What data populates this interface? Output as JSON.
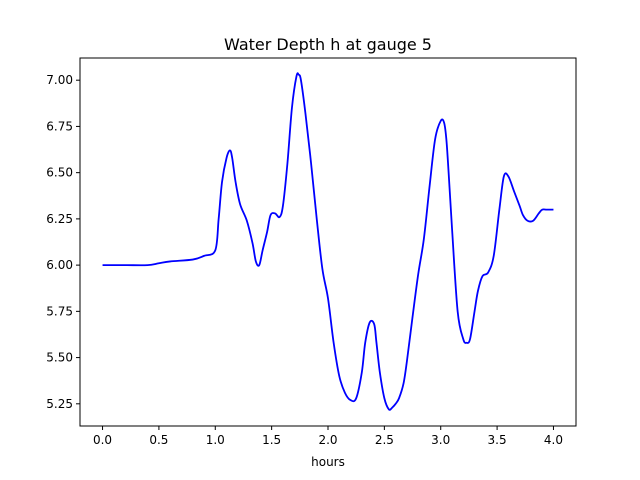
{
  "chart_data": {
    "type": "line",
    "title": "Water Depth h at gauge 5",
    "xlabel": "hours",
    "ylabel": "",
    "xlim": [
      -0.2,
      4.2
    ],
    "ylim": [
      5.13,
      7.12
    ],
    "x_ticks": [
      "0.0",
      "0.5",
      "1.0",
      "1.5",
      "2.0",
      "2.5",
      "3.0",
      "3.5",
      "4.0"
    ],
    "y_ticks": [
      "5.25",
      "5.50",
      "5.75",
      "6.00",
      "6.25",
      "6.50",
      "6.75",
      "7.00"
    ],
    "grid": false,
    "series": [
      {
        "color": "#0000ff",
        "x": [
          0.0,
          0.2,
          0.4,
          0.5,
          0.6,
          0.8,
          0.9,
          1.0,
          1.03,
          1.06,
          1.1,
          1.13,
          1.15,
          1.18,
          1.22,
          1.28,
          1.33,
          1.36,
          1.39,
          1.42,
          1.46,
          1.49,
          1.53,
          1.57,
          1.6,
          1.64,
          1.68,
          1.72,
          1.74,
          1.76,
          1.8,
          1.85,
          1.9,
          1.95,
          2.0,
          2.05,
          2.1,
          2.15,
          2.2,
          2.25,
          2.3,
          2.33,
          2.37,
          2.41,
          2.43,
          2.46,
          2.5,
          2.54,
          2.57,
          2.6,
          2.63,
          2.67,
          2.7,
          2.75,
          2.8,
          2.85,
          2.9,
          2.95,
          3.0,
          3.03,
          3.05,
          3.07,
          3.1,
          3.15,
          3.2,
          3.23,
          3.26,
          3.3,
          3.33,
          3.37,
          3.42,
          3.47,
          3.52,
          3.56,
          3.6,
          3.65,
          3.7,
          3.73,
          3.77,
          3.82,
          3.87,
          3.9,
          3.94,
          4.0
        ],
        "y": [
          6.0,
          6.0,
          6.0,
          6.01,
          6.02,
          6.03,
          6.05,
          6.08,
          6.25,
          6.45,
          6.58,
          6.62,
          6.58,
          6.45,
          6.33,
          6.24,
          6.12,
          6.02,
          6.0,
          6.08,
          6.18,
          6.27,
          6.28,
          6.26,
          6.32,
          6.55,
          6.85,
          7.02,
          7.03,
          7.0,
          6.82,
          6.55,
          6.25,
          5.98,
          5.82,
          5.58,
          5.4,
          5.31,
          5.27,
          5.28,
          5.42,
          5.58,
          5.69,
          5.68,
          5.58,
          5.42,
          5.28,
          5.22,
          5.23,
          5.25,
          5.28,
          5.36,
          5.48,
          5.72,
          5.95,
          6.14,
          6.42,
          6.68,
          6.78,
          6.77,
          6.68,
          6.5,
          6.2,
          5.75,
          5.6,
          5.58,
          5.6,
          5.75,
          5.86,
          5.94,
          5.96,
          6.05,
          6.3,
          6.48,
          6.48,
          6.4,
          6.32,
          6.27,
          6.24,
          6.24,
          6.28,
          6.3,
          6.3,
          6.3
        ]
      }
    ]
  }
}
